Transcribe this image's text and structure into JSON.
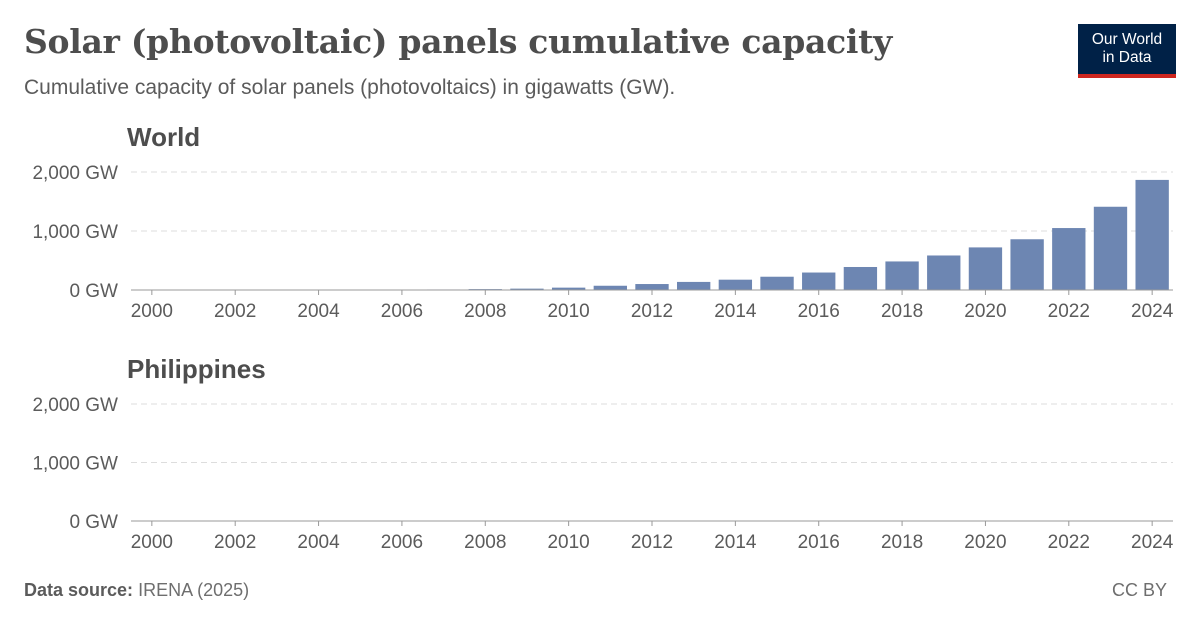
{
  "header": {
    "title": "Solar (photovoltaic) panels cumulative capacity",
    "subtitle": "Cumulative capacity of solar panels (photovoltaics) in gigawatts (GW)."
  },
  "logo": {
    "line1": "Our World",
    "line2": "in Data"
  },
  "footer": {
    "source_label": "Data source:",
    "source_value": "IRENA (2025)",
    "license": "CC BY"
  },
  "colors": {
    "bar": "#6d86b2",
    "grid": "#dddddd",
    "axis": "#999999",
    "text": "#5b5b5b"
  },
  "chart_data": [
    {
      "type": "bar",
      "title": "World",
      "unit": "GW",
      "x": [
        2000,
        2001,
        2002,
        2003,
        2004,
        2005,
        2006,
        2007,
        2008,
        2009,
        2010,
        2011,
        2012,
        2013,
        2014,
        2015,
        2016,
        2017,
        2018,
        2019,
        2020,
        2021,
        2022,
        2023,
        2024
      ],
      "values": [
        1,
        1,
        2,
        3,
        4,
        5,
        7,
        9,
        15,
        23,
        40,
        72,
        101,
        137,
        175,
        225,
        296,
        390,
        484,
        585,
        722,
        860,
        1050,
        1411,
        1866
      ],
      "yticks": [
        0,
        1000,
        2000
      ],
      "ytick_labels": [
        "0 GW",
        "1,000 GW",
        "2,000 GW"
      ],
      "xtick_labels": [
        "2000",
        "2002",
        "2004",
        "2006",
        "2008",
        "2010",
        "2012",
        "2014",
        "2016",
        "2018",
        "2020",
        "2022",
        "2024"
      ],
      "ylim": [
        0,
        2000
      ]
    },
    {
      "type": "bar",
      "title": "Philippines",
      "unit": "GW",
      "x": [
        2000,
        2001,
        2002,
        2003,
        2004,
        2005,
        2006,
        2007,
        2008,
        2009,
        2010,
        2011,
        2012,
        2013,
        2014,
        2015,
        2016,
        2017,
        2018,
        2019,
        2020,
        2021,
        2022,
        2023,
        2024
      ],
      "values": [
        0,
        0,
        0,
        0,
        0,
        0,
        0,
        0,
        0,
        0,
        0,
        0,
        0,
        0,
        0,
        0.2,
        0.8,
        0.9,
        0.9,
        1.0,
        1.0,
        1.4,
        1.6,
        1.9,
        2.8
      ],
      "yticks": [
        0,
        1000,
        2000
      ],
      "ytick_labels": [
        "0 GW",
        "1,000 GW",
        "2,000 GW"
      ],
      "xtick_labels": [
        "2000",
        "2002",
        "2004",
        "2006",
        "2008",
        "2010",
        "2012",
        "2014",
        "2016",
        "2018",
        "2020",
        "2022",
        "2024"
      ],
      "ylim": [
        0,
        2000
      ]
    }
  ]
}
